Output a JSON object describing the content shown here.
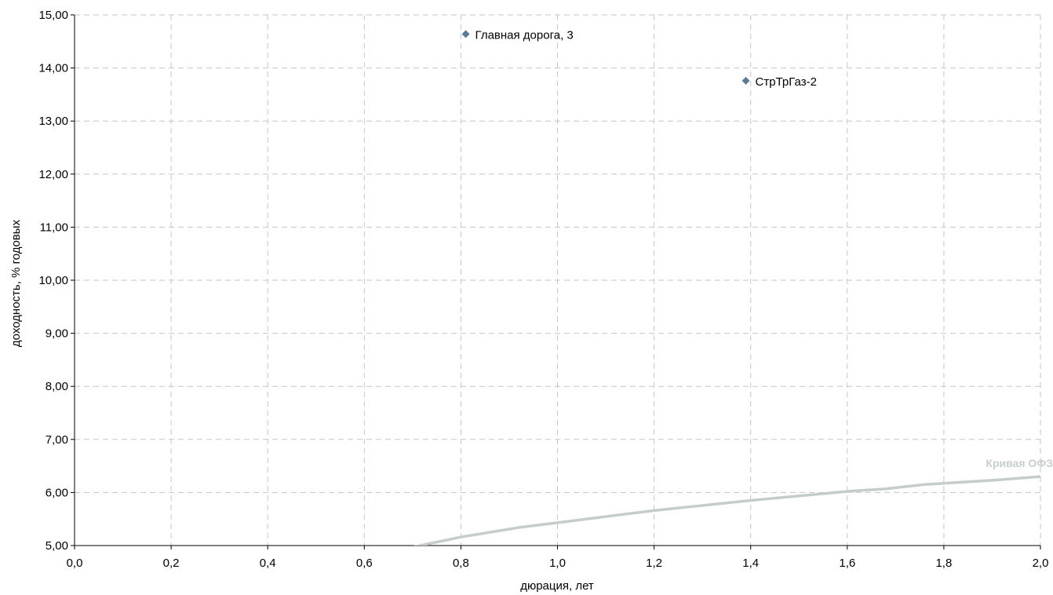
{
  "chart_data": {
    "type": "scatter",
    "xlabel": "дюрация, лет",
    "ylabel": "доходность, % годовых",
    "xlim": [
      0,
      2
    ],
    "ylim": [
      5,
      15
    ],
    "x_ticks": [
      "0,0",
      "0,2",
      "0,4",
      "0,6",
      "0,8",
      "1,0",
      "1,2",
      "1,4",
      "1,6",
      "1,8",
      "2,0"
    ],
    "x_tick_values": [
      0,
      0.2,
      0.4,
      0.6,
      0.8,
      1.0,
      1.2,
      1.4,
      1.6,
      1.8,
      2.0
    ],
    "y_ticks": [
      "5,00",
      "6,00",
      "7,00",
      "8,00",
      "9,00",
      "10,00",
      "11,00",
      "12,00",
      "13,00",
      "14,00",
      "15,00"
    ],
    "y_tick_values": [
      5,
      6,
      7,
      8,
      9,
      10,
      11,
      12,
      13,
      14,
      15
    ],
    "grid": true,
    "points": [
      {
        "label": "Главная дорога, 3",
        "x": 0.81,
        "y": 14.64
      },
      {
        "label": "СтрТрГаз-2",
        "x": 1.39,
        "y": 13.76
      }
    ],
    "curve": {
      "name": "Кривая ОФЗ",
      "x": [
        0.7,
        0.8,
        0.92,
        1.0,
        1.2,
        1.4,
        1.6,
        1.68,
        1.76,
        1.9,
        2.0
      ],
      "y": [
        4.97,
        5.16,
        5.34,
        5.43,
        5.66,
        5.85,
        6.02,
        6.07,
        6.15,
        6.23,
        6.3
      ]
    },
    "colors": {
      "marker": "#5a7a96",
      "curve": "#c5cdc9",
      "curve_label": "#c8cfcb",
      "grid": "#c6c6c6",
      "axis": "#000000"
    }
  }
}
